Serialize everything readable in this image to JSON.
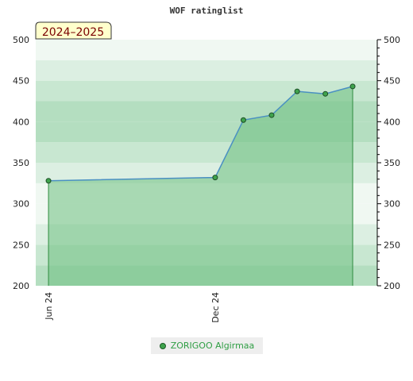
{
  "chart_data": {
    "type": "area",
    "title": "WOF ratinglist",
    "badge": "2024–2025",
    "ylim": [
      200,
      500
    ],
    "yticks": [
      "200",
      "250",
      "300",
      "350",
      "400",
      "450",
      "500"
    ],
    "xlim": [
      "2024-05-18",
      "2025-05-28"
    ],
    "xticks": [
      {
        "label": "Jun 24",
        "date": "2024-06-01"
      },
      {
        "label": "Dec 24",
        "date": "2024-12-01"
      }
    ],
    "series": [
      {
        "name": "ZORIGOO Algirmaa",
        "x": [
          "2024-06-01",
          "2024-12-01",
          "2025-01-01",
          "2025-02-01",
          "2025-03-01",
          "2025-04-01",
          "2025-05-01"
        ],
        "values": [
          328,
          332,
          402,
          408,
          437,
          434,
          443
        ]
      }
    ],
    "colors": {
      "line": "#4a90c2",
      "fill": "#6dbf80",
      "marker": "#3fa34d",
      "band_dark": "#b4dec0",
      "band_light": "#f0f8f2"
    }
  }
}
